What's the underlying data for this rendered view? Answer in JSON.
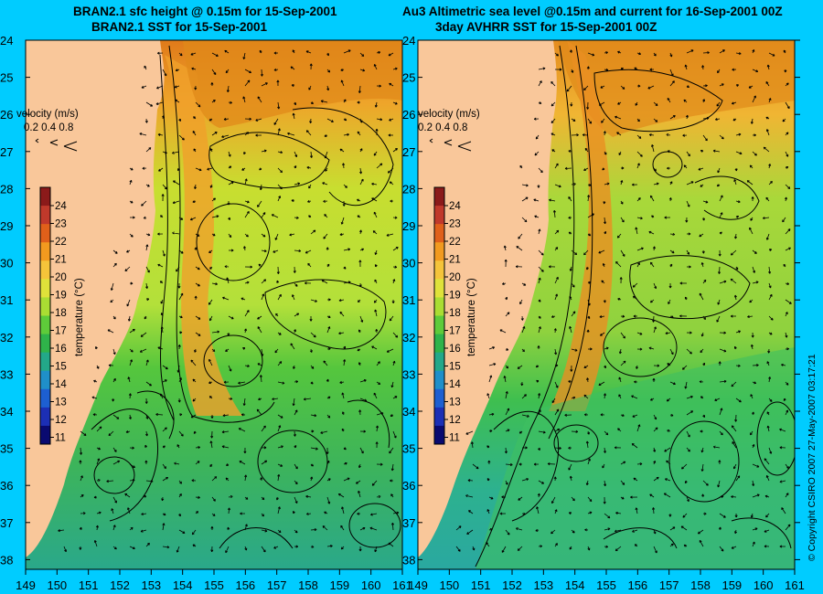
{
  "panels": [
    {
      "title_line1": "BRAN2.1 sfc height @ 0.15m for 15-Sep-2001",
      "title_line2": "BRAN2.1 SST for 15-Sep-2001"
    },
    {
      "title_line1": "Au3 Altimetric sea level  @0.15m and current for 16-Sep-2001 00Z",
      "title_line2": "3day AVHRR SST for 15-Sep-2001 00Z"
    }
  ],
  "latitude_ticks": [
    "24",
    "25",
    "26",
    "27",
    "28",
    "29",
    "30",
    "31",
    "32",
    "33",
    "34",
    "35",
    "36",
    "37",
    "38"
  ],
  "longitude_ticks": [
    "149",
    "150",
    "151",
    "152",
    "153",
    "154",
    "155",
    "156",
    "157",
    "158",
    "159",
    "160",
    "161"
  ],
  "velocity_key": {
    "label": "velocity (m/s)",
    "scale": "0.2 0.4 0.8"
  },
  "colorbar": {
    "label": "temperature (°C)",
    "ticks": [
      "24",
      "23",
      "22",
      "21",
      "20",
      "19",
      "18",
      "17",
      "16",
      "15",
      "14",
      "13",
      "12",
      "11"
    ],
    "colors": [
      "#8b1a1a",
      "#c0392b",
      "#e0601a",
      "#f29a1f",
      "#f5c43a",
      "#dfe23a",
      "#aadd33",
      "#5ecb3a",
      "#2fb34a",
      "#23a889",
      "#1f8fc9",
      "#1d5fd1",
      "#1c2fb5",
      "#0a0a70"
    ]
  },
  "copyright": "© Copyright CSIRO 2007   27-May-2007 03:17:21",
  "colors": {
    "background": "#00ccff",
    "land": "#f9c79a"
  }
}
